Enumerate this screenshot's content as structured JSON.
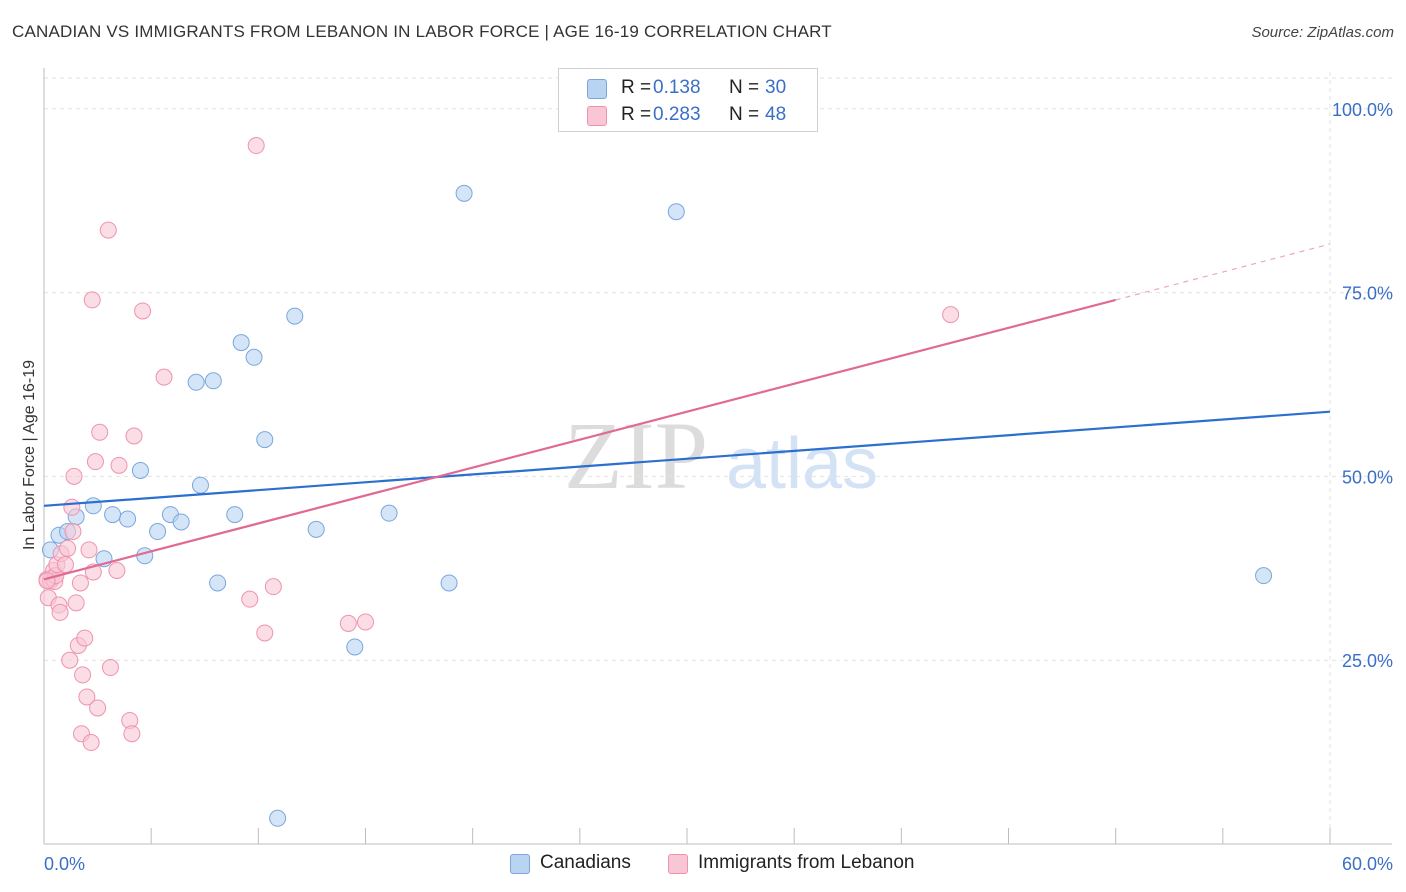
{
  "header": {
    "title": "CANADIAN VS IMMIGRANTS FROM LEBANON IN LABOR FORCE | AGE 16-19 CORRELATION CHART",
    "source": "Source: ZipAtlas.com"
  },
  "legend": {
    "canadians": {
      "r_label": "R =",
      "r_value": "0.138",
      "n_label": "N =",
      "n_value": "30"
    },
    "lebanon": {
      "r_label": "R =",
      "r_value": "0.283",
      "n_label": "N =",
      "n_value": "48"
    }
  },
  "bottom_legend": {
    "canadians": "Canadians",
    "lebanon": "Immigrants from Lebanon"
  },
  "watermark": {
    "zip": "ZIP",
    "atlas": "atlas"
  },
  "colors": {
    "blue_fill": "#b9d3f3",
    "blue_stroke": "#7aa6dc",
    "blue_line": "#2b6fcf",
    "pink_fill": "#f8c6d5",
    "pink_stroke": "#ee93ae",
    "pink_line": "#e06a93",
    "tick_text": "#3a6fc8"
  },
  "chart_data": {
    "type": "scatter",
    "title": "CANADIAN VS IMMIGRANTS FROM LEBANON IN LABOR FORCE | AGE 16-19 CORRELATION CHART",
    "xlabel": "",
    "ylabel": "In Labor Force | Age 16-19",
    "xlim": [
      0,
      60
    ],
    "ylim": [
      0,
      105
    ],
    "x_tick_labels": [
      {
        "value": 0,
        "label": "0.0%"
      },
      {
        "value": 60,
        "label": "60.0%"
      }
    ],
    "y_tick_labels": [
      {
        "value": 25,
        "label": "25.0%"
      },
      {
        "value": 50,
        "label": "50.0%"
      },
      {
        "value": 75,
        "label": "75.0%"
      },
      {
        "value": 100,
        "label": "100.0%"
      }
    ],
    "grid": true,
    "series": [
      {
        "name": "Canadians",
        "points": [
          [
            0.3,
            40.0
          ],
          [
            0.7,
            42.0
          ],
          [
            1.1,
            42.5
          ],
          [
            1.5,
            44.5
          ],
          [
            2.3,
            46.0
          ],
          [
            2.8,
            38.8
          ],
          [
            3.2,
            44.8
          ],
          [
            3.9,
            44.2
          ],
          [
            4.5,
            50.8
          ],
          [
            4.7,
            39.2
          ],
          [
            5.3,
            42.5
          ],
          [
            5.9,
            44.8
          ],
          [
            6.4,
            43.8
          ],
          [
            7.1,
            62.8
          ],
          [
            7.3,
            48.8
          ],
          [
            7.9,
            63.0
          ],
          [
            8.1,
            35.5
          ],
          [
            8.9,
            44.8
          ],
          [
            9.2,
            68.2
          ],
          [
            9.8,
            66.2
          ],
          [
            10.3,
            55.0
          ],
          [
            10.9,
            3.5
          ],
          [
            11.7,
            71.8
          ],
          [
            12.7,
            42.8
          ],
          [
            14.5,
            26.8
          ],
          [
            16.1,
            45.0
          ],
          [
            18.9,
            35.5
          ],
          [
            19.6,
            88.5
          ],
          [
            29.5,
            86.0
          ],
          [
            56.9,
            36.5
          ]
        ],
        "trend": {
          "x": [
            0,
            60
          ],
          "y": [
            46.0,
            58.8
          ]
        }
      },
      {
        "name": "Immigrants from Lebanon",
        "points": [
          [
            0.1,
            36.0
          ],
          [
            0.2,
            33.5
          ],
          [
            0.3,
            35.8
          ],
          [
            0.35,
            36.2
          ],
          [
            0.45,
            37.2
          ],
          [
            0.5,
            35.7
          ],
          [
            0.55,
            36.5
          ],
          [
            0.6,
            38.0
          ],
          [
            0.7,
            32.5
          ],
          [
            0.75,
            31.5
          ],
          [
            0.8,
            39.5
          ],
          [
            1.0,
            38.0
          ],
          [
            1.1,
            40.2
          ],
          [
            1.2,
            25.0
          ],
          [
            1.3,
            45.8
          ],
          [
            1.35,
            42.5
          ],
          [
            1.4,
            50.0
          ],
          [
            1.5,
            32.8
          ],
          [
            1.6,
            27.0
          ],
          [
            1.7,
            35.5
          ],
          [
            1.75,
            15.0
          ],
          [
            1.8,
            23.0
          ],
          [
            1.9,
            28.0
          ],
          [
            2.0,
            20.0
          ],
          [
            2.1,
            40.0
          ],
          [
            2.2,
            13.8
          ],
          [
            2.25,
            74.0
          ],
          [
            2.3,
            37.0
          ],
          [
            2.4,
            52.0
          ],
          [
            2.5,
            18.5
          ],
          [
            2.6,
            56.0
          ],
          [
            3.0,
            83.5
          ],
          [
            3.1,
            24.0
          ],
          [
            3.4,
            37.2
          ],
          [
            3.5,
            51.5
          ],
          [
            4.0,
            16.8
          ],
          [
            4.1,
            15.0
          ],
          [
            4.2,
            55.5
          ],
          [
            4.6,
            72.5
          ],
          [
            5.6,
            63.5
          ],
          [
            9.9,
            95.0
          ],
          [
            9.6,
            33.3
          ],
          [
            10.3,
            28.7
          ],
          [
            10.7,
            35.0
          ],
          [
            14.2,
            30.0
          ],
          [
            15.0,
            30.2
          ],
          [
            42.3,
            72.0
          ],
          [
            0.05,
            35.8
          ]
        ],
        "trend": {
          "x": [
            0,
            50
          ],
          "y": [
            36.0,
            74.0
          ],
          "dashed_extension": {
            "x": [
              50,
              60
            ],
            "y": [
              74.0,
              81.6
            ]
          }
        }
      }
    ]
  }
}
